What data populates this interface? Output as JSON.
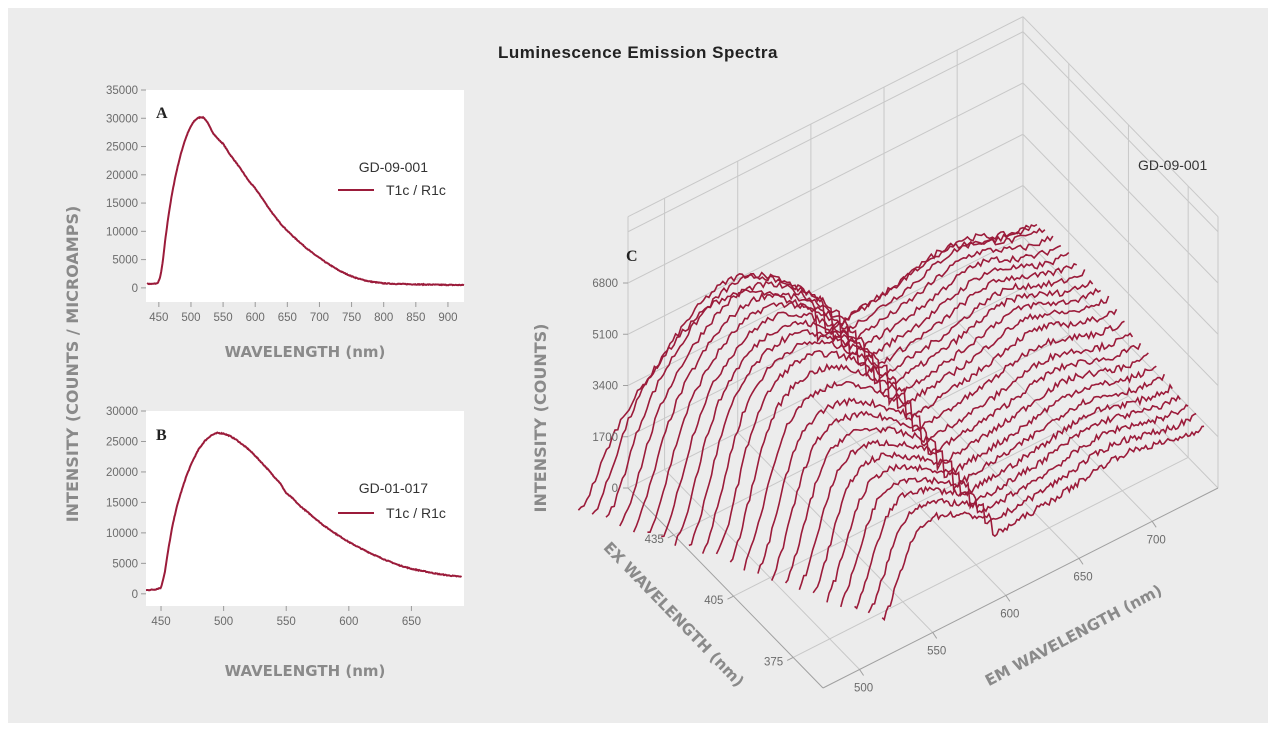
{
  "title": "Luminescence Emission Spectra",
  "shared_ylabel": "INTENSITY (COUNTS / MICROAMPS)",
  "colors": {
    "series": "#9b1b3a",
    "background": "#ececec",
    "plot": "#ffffff",
    "grid": "#cfcfcf"
  },
  "chart_data": [
    {
      "panel": "A",
      "type": "line",
      "title": "",
      "xlabel": "WAVELENGTH (nm)",
      "ylabel": "INTENSITY (COUNTS / MICROAMPS)",
      "xlim": [
        430,
        925
      ],
      "ylim": [
        -2500,
        35000
      ],
      "xticks": [
        450,
        500,
        550,
        600,
        650,
        700,
        750,
        800,
        850,
        900
      ],
      "yticks": [
        0,
        5000,
        10000,
        15000,
        20000,
        25000,
        30000,
        35000
      ],
      "legend_title": "GD-09-001",
      "grid": false,
      "legend_position": "right",
      "series": [
        {
          "name": "T1c / R1c",
          "x": [
            432,
            440,
            448,
            452,
            456,
            460,
            465,
            470,
            475,
            480,
            485,
            490,
            495,
            500,
            505,
            510,
            515,
            520,
            525,
            530,
            535,
            540,
            545,
            550,
            555,
            560,
            570,
            580,
            590,
            600,
            610,
            620,
            630,
            640,
            650,
            660,
            670,
            680,
            690,
            700,
            710,
            720,
            730,
            740,
            750,
            760,
            770,
            780,
            790,
            800,
            820,
            840,
            860,
            880,
            900,
            925
          ],
          "y": [
            700,
            700,
            800,
            1800,
            4500,
            8500,
            12800,
            16300,
            19300,
            21800,
            24000,
            25900,
            27400,
            28600,
            29500,
            30000,
            30200,
            30100,
            29400,
            28300,
            27300,
            26600,
            26000,
            25500,
            24600,
            23700,
            22200,
            20600,
            18900,
            17600,
            16000,
            14300,
            12700,
            11300,
            10100,
            9000,
            8000,
            7000,
            6100,
            5300,
            4500,
            3800,
            3100,
            2550,
            2050,
            1650,
            1350,
            1100,
            950,
            800,
            700,
            650,
            600,
            560,
            520,
            500
          ]
        }
      ]
    },
    {
      "panel": "B",
      "type": "line",
      "title": "",
      "xlabel": "WAVELENGTH (nm)",
      "ylabel": "INTENSITY (COUNTS / MICROAMPS)",
      "xlim": [
        438,
        692
      ],
      "ylim": [
        -2000,
        30000
      ],
      "xticks": [
        450,
        500,
        550,
        600,
        650
      ],
      "yticks": [
        0,
        5000,
        10000,
        15000,
        20000,
        25000,
        30000
      ],
      "legend_title": "GD-01-017",
      "grid": false,
      "legend_position": "right",
      "series": [
        {
          "name": "T1c / R1c",
          "x": [
            438,
            445,
            450,
            453,
            456,
            459,
            462,
            465,
            470,
            475,
            480,
            485,
            490,
            495,
            500,
            505,
            510,
            515,
            520,
            525,
            530,
            535,
            540,
            545,
            550,
            555,
            560,
            570,
            580,
            590,
            600,
            610,
            620,
            630,
            640,
            650,
            660,
            670,
            680,
            690
          ],
          "y": [
            600,
            700,
            1000,
            3500,
            7500,
            11000,
            13800,
            16000,
            19200,
            21700,
            23700,
            25100,
            26000,
            26400,
            26300,
            25900,
            25300,
            24500,
            23700,
            22700,
            21600,
            20500,
            19300,
            18200,
            16500,
            15700,
            14600,
            12900,
            11200,
            9800,
            8500,
            7400,
            6400,
            5500,
            4700,
            4100,
            3700,
            3300,
            3000,
            2800
          ]
        }
      ]
    },
    {
      "panel": "C",
      "type": "line",
      "subtype": "3d-waterfall",
      "title": "",
      "legend_title": "GD-09-001",
      "zlabel": "INTENSITY (COUNTS)",
      "exlabel": "EX WAVELENGTH (nm)",
      "emlabel": "EM WAVELENGTH (nm)",
      "zticks": [
        0,
        1700,
        3400,
        5100,
        6800
      ],
      "ex_ticks": [
        375,
        405,
        435
      ],
      "em_ticks": [
        500,
        550,
        600,
        650,
        700
      ],
      "ex_range": [
        360,
        458
      ],
      "em_range": [
        475,
        745
      ],
      "zlim": [
        0,
        6800
      ],
      "grid": true,
      "ex_values": [
        367,
        371,
        375,
        379,
        383,
        387,
        391,
        395,
        399,
        403,
        407,
        411,
        415,
        419,
        423,
        427,
        431,
        435,
        439,
        443,
        447,
        451,
        455
      ],
      "em_start": [
        525,
        521,
        517,
        513,
        509,
        505,
        501,
        497,
        493,
        489,
        485,
        481,
        477,
        473,
        469,
        465,
        461,
        457,
        453,
        449,
        445,
        441,
        437
      ],
      "em_end": [
        745,
        745,
        745,
        745,
        745,
        745,
        745,
        745,
        745,
        745,
        745,
        745,
        745,
        745,
        745,
        745,
        745,
        745,
        745,
        745,
        745,
        745,
        745
      ],
      "peak_intensity": [
        3500,
        3650,
        3800,
        3900,
        4000,
        4150,
        4300,
        4500,
        4700,
        4900,
        5200,
        5500,
        5700,
        5800,
        5850,
        5900,
        5950,
        6000,
        6050,
        6100,
        6100,
        5900,
        5000
      ]
    }
  ]
}
